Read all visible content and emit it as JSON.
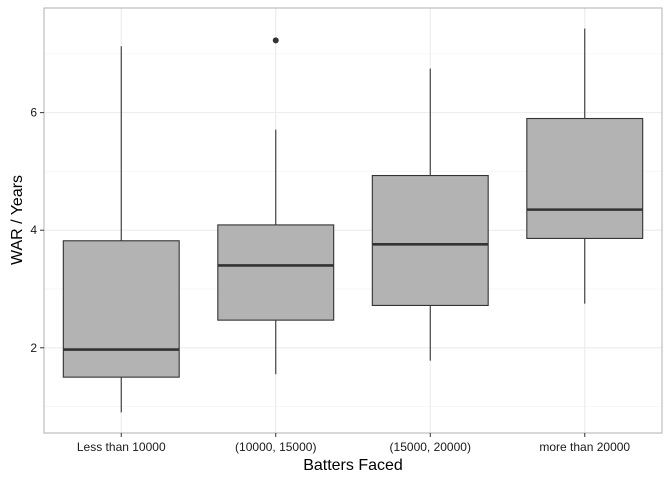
{
  "chart_data": {
    "type": "box",
    "title": "",
    "xlabel": "Batters Faced",
    "ylabel": "WAR / Years",
    "ylim": [
      0.55,
      7.78
    ],
    "yticks": [
      2,
      4,
      6
    ],
    "grid": true,
    "legend": "none",
    "categories": [
      "Less than 10000",
      "(10000, 15000)",
      "(15000, 20000)",
      "more than 20000"
    ],
    "boxes": [
      {
        "category": "Less than 10000",
        "min": 0.9,
        "q1": 1.5,
        "median": 1.97,
        "q3": 3.82,
        "max": 7.13,
        "outliers": []
      },
      {
        "category": "(10000, 15000)",
        "min": 1.55,
        "q1": 2.47,
        "median": 3.4,
        "q3": 4.09,
        "max": 5.71,
        "outliers": [
          7.23
        ]
      },
      {
        "category": "(15000, 20000)",
        "min": 1.78,
        "q1": 2.72,
        "median": 3.76,
        "q3": 4.93,
        "max": 6.75,
        "outliers": []
      },
      {
        "category": "more than 20000",
        "min": 2.75,
        "q1": 3.86,
        "median": 4.35,
        "q3": 5.9,
        "max": 7.43,
        "outliers": []
      }
    ],
    "colors": {
      "box_fill": "#b3b3b3",
      "line": "#333333",
      "grid_major": "#ebebeb",
      "grid_minor": "#f5f5f5",
      "panel_border": "#b0b0b0",
      "tick_label": "#1a1a1a"
    }
  }
}
